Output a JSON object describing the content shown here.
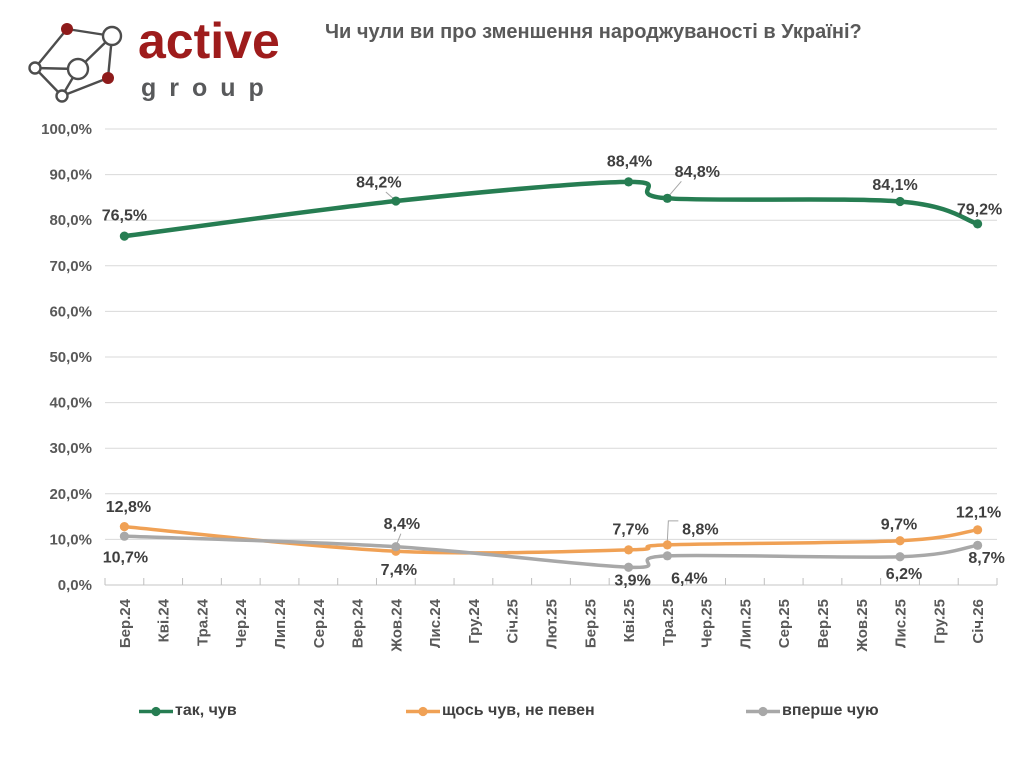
{
  "header": {
    "brand_primary": "active",
    "brand_secondary": "group"
  },
  "colors": {
    "brand_red": "#9E1C1C",
    "logo_node_red": "#8E1B1B",
    "logo_stroke": "#4D4D4D",
    "brand_gray": "#58595B",
    "title_gray": "#595959",
    "grid": "#D9D9D9",
    "axis_line": "#C6C6C6",
    "tick": "#BFBFBF",
    "leader": "#A6A6A6",
    "axis_text": "#595959",
    "data_label": "#3F3F3F"
  },
  "chart_data": {
    "type": "line",
    "title": "Чи чули ви про зменшення народжуваності в Україні?",
    "xlabel": "",
    "ylabel": "",
    "ylim": [
      0,
      100
    ],
    "ytick_step": 10,
    "ytick_labels": [
      "0,0%",
      "10,0%",
      "20,0%",
      "30,0%",
      "40,0%",
      "50,0%",
      "60,0%",
      "70,0%",
      "80,0%",
      "90,0%",
      "100,0%"
    ],
    "grid": true,
    "legend_position": "bottom",
    "x_categories": [
      "Бер.24",
      "Кві.24",
      "Тра.24",
      "Чер.24",
      "Лип.24",
      "Сер.24",
      "Вер.24",
      "Жов.24",
      "Лис.24",
      "Гру.24",
      "Січ.25",
      "Лют.25",
      "Бер.25",
      "Кві.25",
      "Тра.25",
      "Чер.25",
      "Лип.25",
      "Сер.25",
      "Вер.25",
      "Жов.25",
      "Лис.25",
      "Гру.25",
      "Січ.26"
    ],
    "series": [
      {
        "name": "так, чув",
        "color": "#267D52",
        "points": [
          {
            "category": "Бер.24",
            "value": 76.5,
            "label": "76,5%"
          },
          {
            "category": "Жов.24",
            "value": 84.2,
            "label": "84,2%"
          },
          {
            "category": "Кві.25",
            "value": 88.4,
            "label": "88,4%"
          },
          {
            "category": "Тра.25",
            "value": 84.8,
            "label": "84,8%"
          },
          {
            "category": "Лис.25",
            "value": 84.1,
            "label": "84,1%"
          },
          {
            "category": "Січ.26",
            "value": 79.2,
            "label": "79,2%"
          }
        ]
      },
      {
        "name": "щось чув, не певен",
        "color": "#F0A155",
        "points": [
          {
            "category": "Бер.24",
            "value": 12.8,
            "label": "12,8%"
          },
          {
            "category": "Жов.24",
            "value": 7.4,
            "label": "7,4%"
          },
          {
            "category": "Кві.25",
            "value": 7.7,
            "label": "7,7%"
          },
          {
            "category": "Тра.25",
            "value": 8.8,
            "label": "8,8%"
          },
          {
            "category": "Лис.25",
            "value": 9.7,
            "label": "9,7%"
          },
          {
            "category": "Січ.26",
            "value": 12.1,
            "label": "12,1%"
          }
        ]
      },
      {
        "name": "вперше чую",
        "color": "#A8A8A8",
        "points": [
          {
            "category": "Бер.24",
            "value": 10.7,
            "label": "10,7%"
          },
          {
            "category": "Жов.24",
            "value": 8.4,
            "label": "8,4%"
          },
          {
            "category": "Кві.25",
            "value": 3.9,
            "label": "3,9%"
          },
          {
            "category": "Тра.25",
            "value": 6.4,
            "label": "6,4%"
          },
          {
            "category": "Лис.25",
            "value": 6.2,
            "label": "6,2%"
          },
          {
            "category": "Січ.26",
            "value": 8.7,
            "label": "8,7%"
          }
        ]
      }
    ]
  }
}
